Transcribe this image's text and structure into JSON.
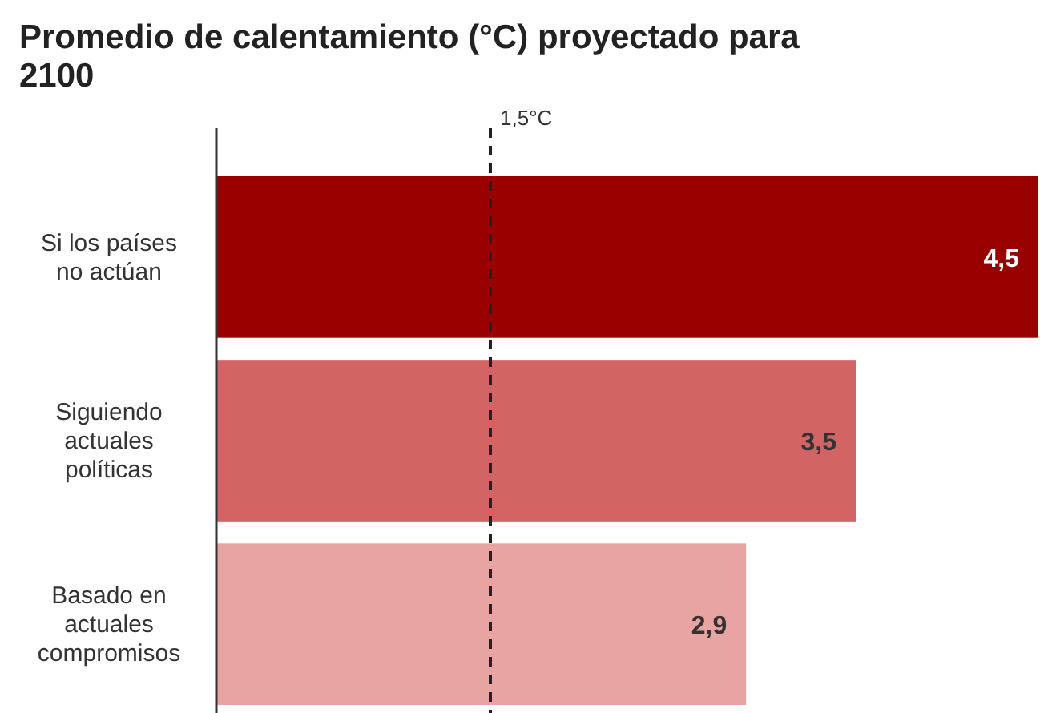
{
  "chart_data": {
    "type": "bar",
    "orientation": "horizontal",
    "title": "Promedio de calentamiento (°C) proyectado para 2100",
    "categories": [
      "Si los países no actúan",
      "Siguiendo actuales políticas",
      "Basado en actuales compromisos"
    ],
    "values": [
      4.5,
      3.5,
      2.9
    ],
    "value_labels": [
      "4,5",
      "3,5",
      "2,9"
    ],
    "colors": [
      "#990000",
      "#d26464",
      "#e8a3a3"
    ],
    "xlim": [
      0,
      4.5
    ],
    "ref_lines": [
      {
        "axis": "x",
        "value": 1.5,
        "label": "1,5°C",
        "line_style": "dashed",
        "color": "#222222"
      }
    ]
  }
}
